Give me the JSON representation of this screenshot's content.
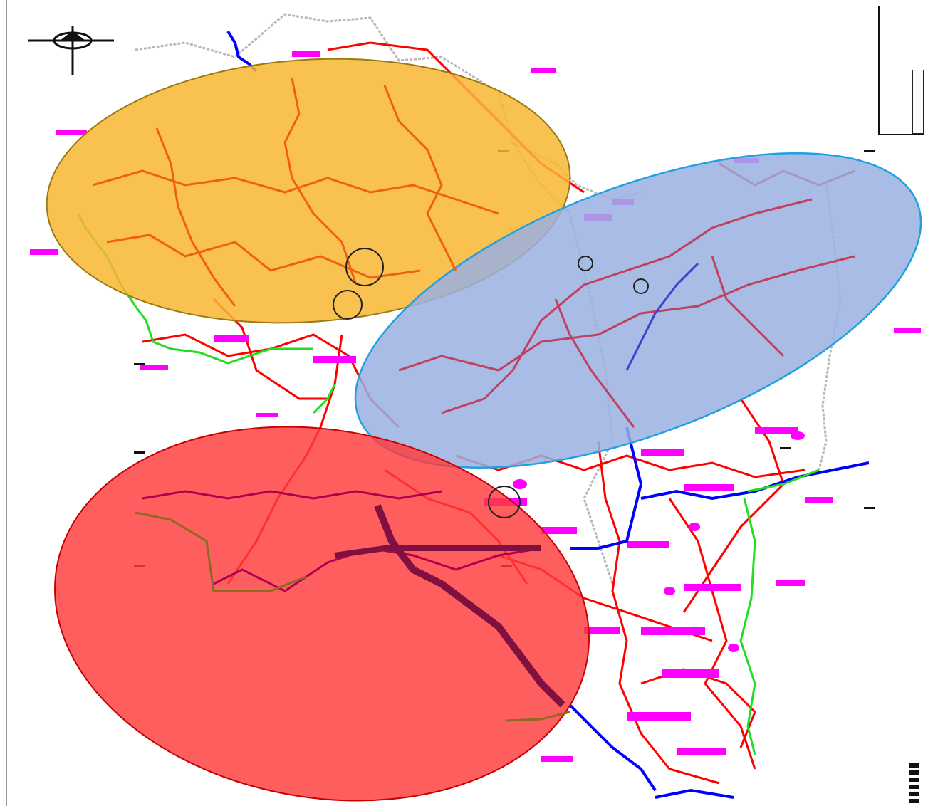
{
  "map": {
    "features": {
      "roads": "#ff0000",
      "rivers": "#0000ff",
      "boundaries": "#22dd22",
      "settlement_labels": "#ff00ff",
      "admin_lines": "#b8b8b8"
    },
    "highlight_zones": [
      {
        "id": "zone-north-west",
        "color": "#f8b630",
        "outline": "#9a7a10"
      },
      {
        "id": "zone-east",
        "color": "#9ab0e0",
        "outline": "#1fa0e0"
      },
      {
        "id": "zone-south-west",
        "color": "#ff4040",
        "outline": "#c80000"
      }
    ],
    "icons": [
      "north-arrow-icon",
      "legend-box",
      "scale-bar"
    ]
  }
}
